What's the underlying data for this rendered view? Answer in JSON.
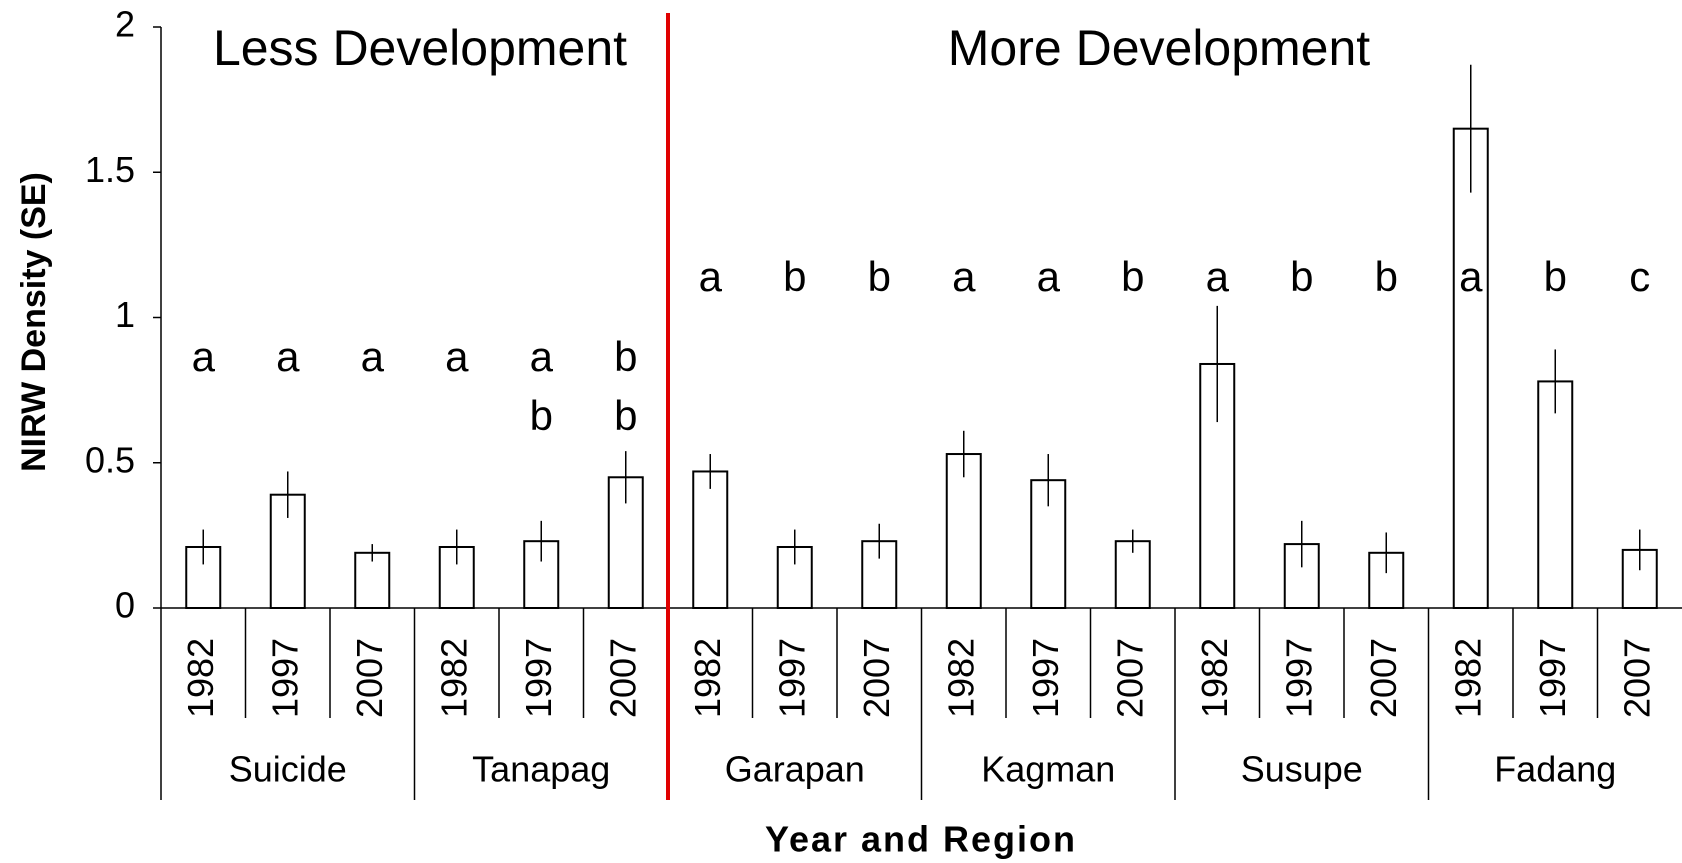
{
  "chart_data": {
    "type": "bar",
    "annotations": [
      "Less Development",
      "More Development"
    ],
    "ylabel": "NIRW Density (SE)",
    "xlabel": "Year and Region",
    "groups": [
      "Suicide",
      "Tanapag",
      "Garapan",
      "Kagman",
      "Susupe",
      "Fadang"
    ],
    "categories": [
      "1982",
      "1997",
      "2007",
      "1982",
      "1997",
      "2007",
      "1982",
      "1997",
      "2007",
      "1982",
      "1997",
      "2007",
      "1982",
      "1997",
      "2007",
      "1982",
      "1997",
      "2007"
    ],
    "values": [
      0.21,
      0.39,
      0.19,
      0.21,
      0.23,
      0.45,
      0.47,
      0.21,
      0.23,
      0.53,
      0.44,
      0.23,
      0.84,
      0.22,
      0.19,
      1.65,
      0.78,
      0.2
    ],
    "errors": [
      0.06,
      0.08,
      0.03,
      0.06,
      0.07,
      0.09,
      0.06,
      0.06,
      0.06,
      0.08,
      0.09,
      0.04,
      0.2,
      0.08,
      0.07,
      0.22,
      0.11,
      0.07
    ],
    "letters": [
      [
        "a"
      ],
      [
        "a"
      ],
      [
        "a"
      ],
      [
        "a"
      ],
      [
        "a",
        "b"
      ],
      [
        "b",
        "b"
      ],
      [
        "a"
      ],
      [
        "b"
      ],
      [
        "b"
      ],
      [
        "a"
      ],
      [
        "a"
      ],
      [
        "b"
      ],
      [
        "a"
      ],
      [
        "b"
      ],
      [
        "b"
      ],
      [
        "a"
      ],
      [
        "b"
      ],
      [
        "c"
      ]
    ],
    "color": "#ffffff",
    "ylim": [
      0,
      2
    ],
    "yticks": [
      0,
      0.5,
      1,
      1.5,
      2
    ]
  }
}
